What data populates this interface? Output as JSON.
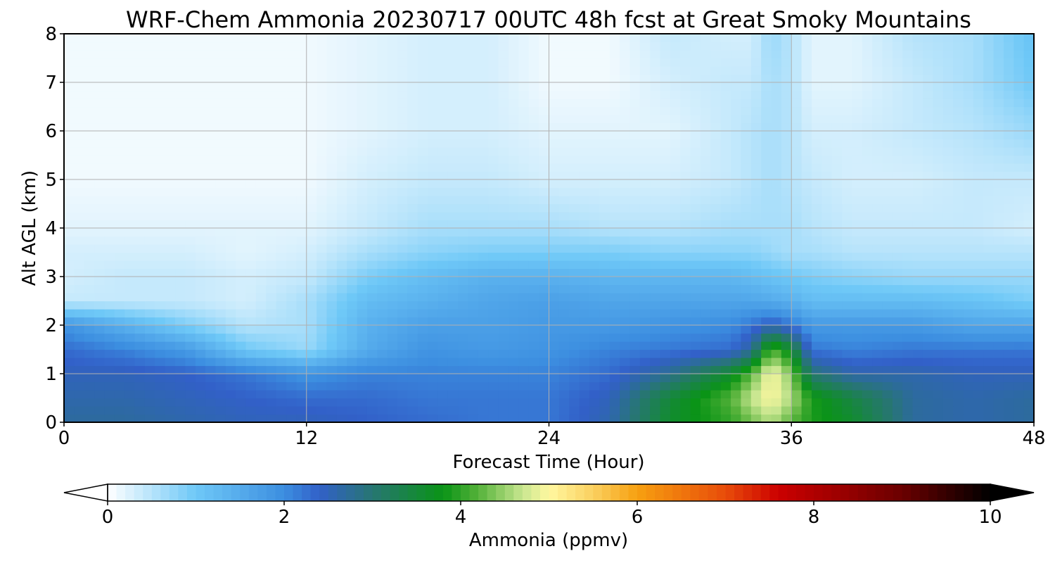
{
  "chart_data": {
    "type": "heatmap",
    "title": "WRF-Chem Ammonia  20230717 00UTC 48h fcst at Great Smoky Mountains",
    "xlabel": "Forecast Time (Hour)",
    "ylabel": "Alt AGL (km)",
    "xlim": [
      0,
      48
    ],
    "ylim": [
      0,
      8
    ],
    "xticks": [
      0,
      12,
      24,
      36,
      48
    ],
    "yticks": [
      0,
      1,
      2,
      3,
      4,
      5,
      6,
      7,
      8
    ],
    "grid": true,
    "x": [
      0,
      3,
      6,
      9,
      12,
      15,
      18,
      21,
      24,
      27,
      30,
      33,
      34,
      35,
      36,
      37,
      39,
      42,
      45,
      48
    ],
    "y": [
      0,
      0.5,
      1,
      1.5,
      2,
      2.5,
      3,
      3.5,
      4,
      5,
      6,
      7,
      8
    ],
    "z": [
      [
        2.7,
        2.7,
        2.6,
        2.5,
        2.5,
        2.4,
        2.3,
        2.2,
        2.2,
        2.6,
        3.6,
        4.0,
        4.3,
        4.6,
        4.2,
        3.9,
        3.6,
        2.7,
        2.6,
        2.7
      ],
      [
        2.6,
        2.6,
        2.5,
        2.4,
        2.3,
        2.3,
        2.2,
        2.2,
        2.2,
        2.5,
        3.5,
        4.2,
        4.7,
        5.0,
        4.6,
        3.9,
        3.4,
        2.7,
        2.6,
        2.7
      ],
      [
        2.5,
        2.5,
        2.4,
        2.2,
        1.9,
        2.1,
        2.1,
        2.1,
        2.1,
        2.3,
        2.8,
        3.6,
        4.2,
        5.0,
        4.4,
        3.0,
        2.6,
        2.6,
        2.5,
        2.5
      ],
      [
        2.3,
        2.1,
        1.8,
        1.0,
        0.7,
        1.5,
        1.9,
        1.8,
        1.9,
        2.1,
        2.2,
        2.3,
        2.7,
        4.2,
        3.6,
        2.2,
        2.1,
        2.2,
        2.2,
        2.2
      ],
      [
        1.9,
        1.4,
        0.9,
        0.5,
        0.6,
        1.4,
        1.7,
        1.7,
        1.8,
        1.8,
        1.9,
        2.0,
        2.2,
        2.5,
        2.2,
        1.8,
        1.8,
        1.8,
        1.6,
        1.6
      ],
      [
        0.4,
        0.4,
        0.4,
        0.3,
        0.6,
        1.2,
        1.4,
        1.6,
        1.7,
        1.6,
        1.6,
        1.6,
        1.6,
        1.5,
        1.4,
        1.2,
        1.2,
        1.2,
        1.1,
        0.9
      ],
      [
        0.3,
        0.4,
        0.4,
        0.3,
        0.4,
        0.9,
        1.2,
        1.4,
        1.4,
        1.3,
        1.3,
        1.3,
        1.2,
        1.1,
        1.0,
        0.9,
        0.8,
        0.7,
        0.7,
        0.7
      ],
      [
        0.3,
        0.3,
        0.3,
        0.2,
        0.3,
        0.6,
        0.8,
        0.9,
        0.9,
        0.9,
        0.8,
        0.8,
        0.8,
        0.7,
        0.6,
        0.6,
        0.5,
        0.5,
        0.5,
        0.5
      ],
      [
        0.2,
        0.2,
        0.2,
        0.2,
        0.2,
        0.4,
        0.6,
        0.6,
        0.6,
        0.5,
        0.5,
        0.6,
        0.6,
        0.6,
        0.6,
        0.5,
        0.4,
        0.4,
        0.4,
        0.3
      ],
      [
        0.1,
        0.1,
        0.1,
        0.1,
        0.1,
        0.3,
        0.4,
        0.4,
        0.3,
        0.3,
        0.3,
        0.4,
        0.5,
        0.6,
        0.5,
        0.4,
        0.3,
        0.3,
        0.4,
        0.4
      ],
      [
        0.1,
        0.1,
        0.1,
        0.1,
        0.1,
        0.2,
        0.3,
        0.3,
        0.2,
        0.2,
        0.2,
        0.4,
        0.5,
        0.6,
        0.5,
        0.3,
        0.3,
        0.4,
        0.5,
        0.7
      ],
      [
        0.1,
        0.1,
        0.1,
        0.1,
        0.1,
        0.2,
        0.3,
        0.3,
        0.1,
        0.1,
        0.3,
        0.4,
        0.4,
        0.6,
        0.5,
        0.2,
        0.2,
        0.4,
        0.6,
        1.0
      ],
      [
        0.1,
        0.1,
        0.1,
        0.1,
        0.1,
        0.2,
        0.3,
        0.3,
        0.1,
        0.1,
        0.4,
        0.3,
        0.3,
        0.7,
        0.5,
        0.2,
        0.2,
        0.5,
        0.6,
        1.1
      ]
    ],
    "colorbar": {
      "label": "Ammonia  (ppmv)",
      "vmin": 0,
      "vmax": 10,
      "ticks": [
        0,
        2,
        4,
        6,
        8,
        10
      ],
      "extend": "both",
      "stops": [
        {
          "v": 0,
          "color": "#ffffff"
        },
        {
          "v": 1,
          "color": "#6ec8f7"
        },
        {
          "v": 2,
          "color": "#3c8ee0"
        },
        {
          "v": 2.4,
          "color": "#3260c8"
        },
        {
          "v": 3,
          "color": "#277672"
        },
        {
          "v": 3.8,
          "color": "#0a9416"
        },
        {
          "v": 4.2,
          "color": "#55b23a"
        },
        {
          "v": 4.7,
          "color": "#c8e690"
        },
        {
          "v": 5,
          "color": "#fff8a0"
        },
        {
          "v": 5.5,
          "color": "#fad060"
        },
        {
          "v": 6,
          "color": "#f7a010"
        },
        {
          "v": 7,
          "color": "#e84c0a"
        },
        {
          "v": 7.6,
          "color": "#cc0000"
        },
        {
          "v": 9,
          "color": "#6a0000"
        },
        {
          "v": 10,
          "color": "#000000"
        }
      ]
    }
  }
}
